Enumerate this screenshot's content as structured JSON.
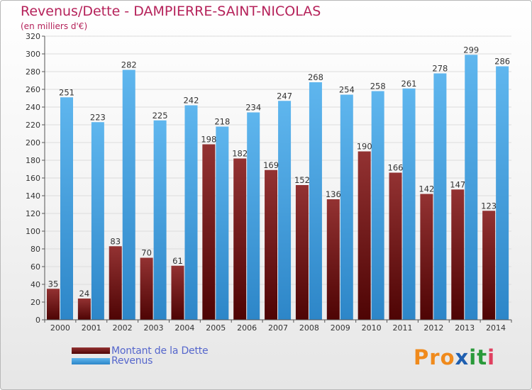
{
  "header": {
    "title": "Revenus/Dette - DAMPIERRE-SAINT-NICOLAS",
    "subtitle": "(en milliers d'€)"
  },
  "legend": {
    "items": [
      {
        "label": "Montant de la Dette",
        "color": "#7a1010"
      },
      {
        "label": "Revenus",
        "color": "#3f9fe0"
      }
    ]
  },
  "logo": {
    "text": "Proxiti",
    "letter_colors": [
      "#f08a1c",
      "#f08a1c",
      "#f08a1c",
      "#1f5fb0",
      "#2a9a3a",
      "#2a9a3a",
      "#e04060"
    ]
  },
  "chart_data": {
    "type": "bar",
    "categories": [
      "2000",
      "2001",
      "2002",
      "2003",
      "2004",
      "2005",
      "2006",
      "2007",
      "2008",
      "2009",
      "2010",
      "2011",
      "2012",
      "2013",
      "2014"
    ],
    "series": [
      {
        "name": "Montant de la Dette",
        "color": "#7a1010",
        "values": [
          35,
          24,
          83,
          70,
          61,
          198,
          182,
          169,
          152,
          136,
          190,
          166,
          142,
          147,
          123
        ]
      },
      {
        "name": "Revenus",
        "color": "#3f9fe0",
        "values": [
          251,
          223,
          282,
          225,
          242,
          218,
          234,
          247,
          268,
          254,
          258,
          261,
          278,
          299,
          286
        ]
      }
    ],
    "ylim": [
      0,
      320
    ],
    "ytick_step": 20,
    "grid": true
  }
}
